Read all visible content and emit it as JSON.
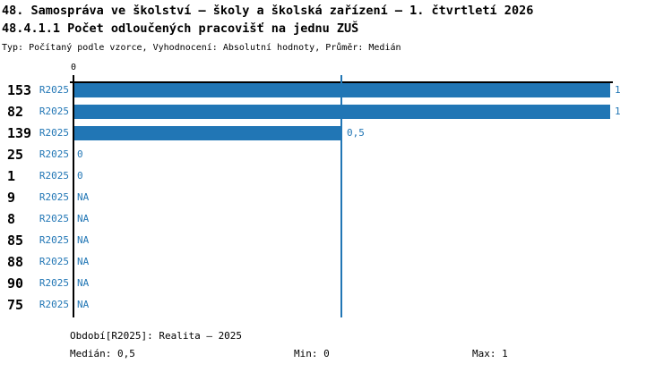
{
  "title": "48. Samospráva ve školství – školy a školská zařízení – 1. čtvrtletí 2026",
  "subtitle": "48.4.1.1 Počet odloučených pracovišť na jednu ZUŠ",
  "meta": "Typ: Počítaný podle vzorce, Vyhodnocení: Absolutní hodnoty, Průměr: Medián",
  "colors": {
    "accent": "#2176b5",
    "axis": "#000000",
    "background": "#ffffff"
  },
  "chart_data": {
    "type": "bar",
    "orientation": "horizontal",
    "title": "48.4.1.1 Počet odloučených pracovišť na jednu ZUŠ",
    "xlabel": "",
    "ylabel": "",
    "xlim": [
      0,
      1
    ],
    "x_axis": {
      "tick_label": "0",
      "gridlines": [
        0.5
      ]
    },
    "grid": "single vertical gridline at 0.5",
    "legend_position": "none",
    "rows": [
      {
        "id": "153",
        "period": "R2025",
        "value": 1,
        "label": "1"
      },
      {
        "id": "82",
        "period": "R2025",
        "value": 1,
        "label": "1"
      },
      {
        "id": "139",
        "period": "R2025",
        "value": 0.5,
        "label": "0,5"
      },
      {
        "id": "25",
        "period": "R2025",
        "value": 0,
        "label": "0"
      },
      {
        "id": "1",
        "period": "R2025",
        "value": 0,
        "label": "0"
      },
      {
        "id": "9",
        "period": "R2025",
        "value": null,
        "label": "NA"
      },
      {
        "id": "8",
        "period": "R2025",
        "value": null,
        "label": "NA"
      },
      {
        "id": "85",
        "period": "R2025",
        "value": null,
        "label": "NA"
      },
      {
        "id": "88",
        "period": "R2025",
        "value": null,
        "label": "NA"
      },
      {
        "id": "90",
        "period": "R2025",
        "value": null,
        "label": "NA"
      },
      {
        "id": "75",
        "period": "R2025",
        "value": null,
        "label": "NA"
      }
    ]
  },
  "footer": {
    "period_line": "Období[R2025]: Realita – 2025",
    "median": "Medián: 0,5",
    "min": "Min: 0",
    "max": "Max: 1"
  }
}
